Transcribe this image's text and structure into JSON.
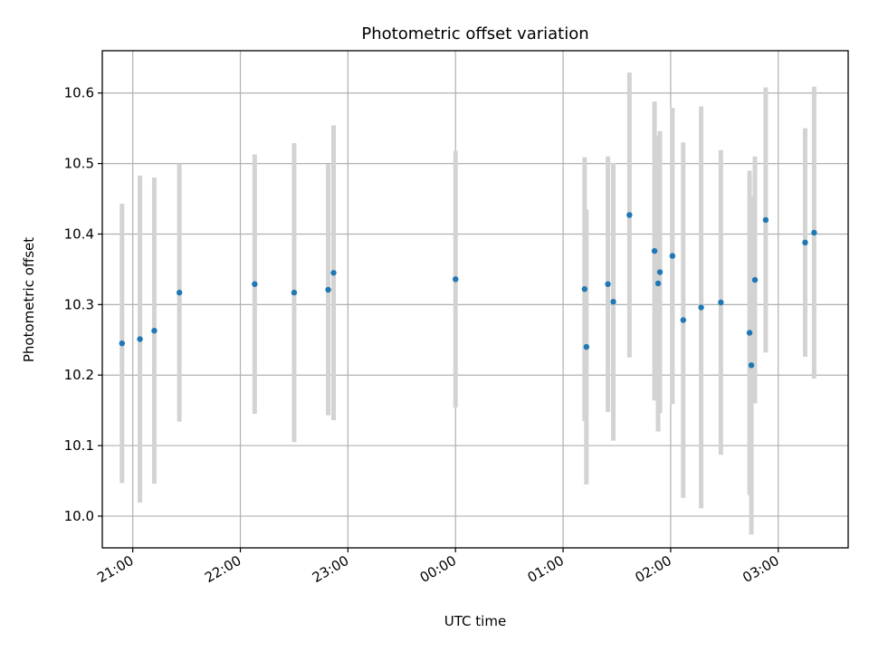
{
  "chart_data": {
    "type": "scatter",
    "title": "Photometric offset variation",
    "xlabel": "UTC time",
    "ylabel": "Photometric offset",
    "x_axis": "time",
    "grid": true,
    "xlim": [
      "20:43",
      "03:39"
    ],
    "ylim": [
      9.955,
      10.66
    ],
    "x_ticks": [
      "21:00",
      "22:00",
      "23:00",
      "00:00",
      "01:00",
      "02:00",
      "03:00"
    ],
    "y_ticks": [
      10.0,
      10.1,
      10.2,
      10.3,
      10.4,
      10.5,
      10.6
    ],
    "y_tick_labels": [
      "10.0",
      "10.1",
      "10.2",
      "10.3",
      "10.4",
      "10.5",
      "10.6"
    ],
    "colors": {
      "marker": "#1f77b4",
      "errorbar": "#d3d3d3",
      "grid": "#b0b0b0"
    },
    "points": [
      {
        "x": "20:54",
        "y": 10.245,
        "err": 0.198
      },
      {
        "x": "21:04",
        "y": 10.251,
        "err": 0.232
      },
      {
        "x": "21:12",
        "y": 10.263,
        "err": 0.217
      },
      {
        "x": "21:26",
        "y": 10.317,
        "err": 0.183
      },
      {
        "x": "22:08",
        "y": 10.329,
        "err": 0.184
      },
      {
        "x": "22:30",
        "y": 10.317,
        "err": 0.212
      },
      {
        "x": "22:49",
        "y": 10.321,
        "err": 0.178
      },
      {
        "x": "22:52",
        "y": 10.345,
        "err": 0.209
      },
      {
        "x": "00:00",
        "y": 10.336,
        "err": 0.182
      },
      {
        "x": "01:12",
        "y": 10.322,
        "err": 0.187
      },
      {
        "x": "01:13",
        "y": 10.24,
        "err": 0.195
      },
      {
        "x": "01:25",
        "y": 10.329,
        "err": 0.181
      },
      {
        "x": "01:28",
        "y": 10.304,
        "err": 0.197
      },
      {
        "x": "01:37",
        "y": 10.427,
        "err": 0.202
      },
      {
        "x": "01:51",
        "y": 10.376,
        "err": 0.212
      },
      {
        "x": "01:53",
        "y": 10.33,
        "err": 0.21
      },
      {
        "x": "01:54",
        "y": 10.346,
        "err": 0.2
      },
      {
        "x": "02:01",
        "y": 10.369,
        "err": 0.21
      },
      {
        "x": "02:07",
        "y": 10.278,
        "err": 0.252
      },
      {
        "x": "02:17",
        "y": 10.296,
        "err": 0.285
      },
      {
        "x": "02:28",
        "y": 10.303,
        "err": 0.216
      },
      {
        "x": "02:44",
        "y": 10.26,
        "err": 0.23
      },
      {
        "x": "02:45",
        "y": 10.214,
        "err": 0.24
      },
      {
        "x": "02:47",
        "y": 10.335,
        "err": 0.175
      },
      {
        "x": "02:53",
        "y": 10.42,
        "err": 0.188
      },
      {
        "x": "03:15",
        "y": 10.388,
        "err": 0.162
      },
      {
        "x": "03:20",
        "y": 10.402,
        "err": 0.207
      }
    ]
  }
}
